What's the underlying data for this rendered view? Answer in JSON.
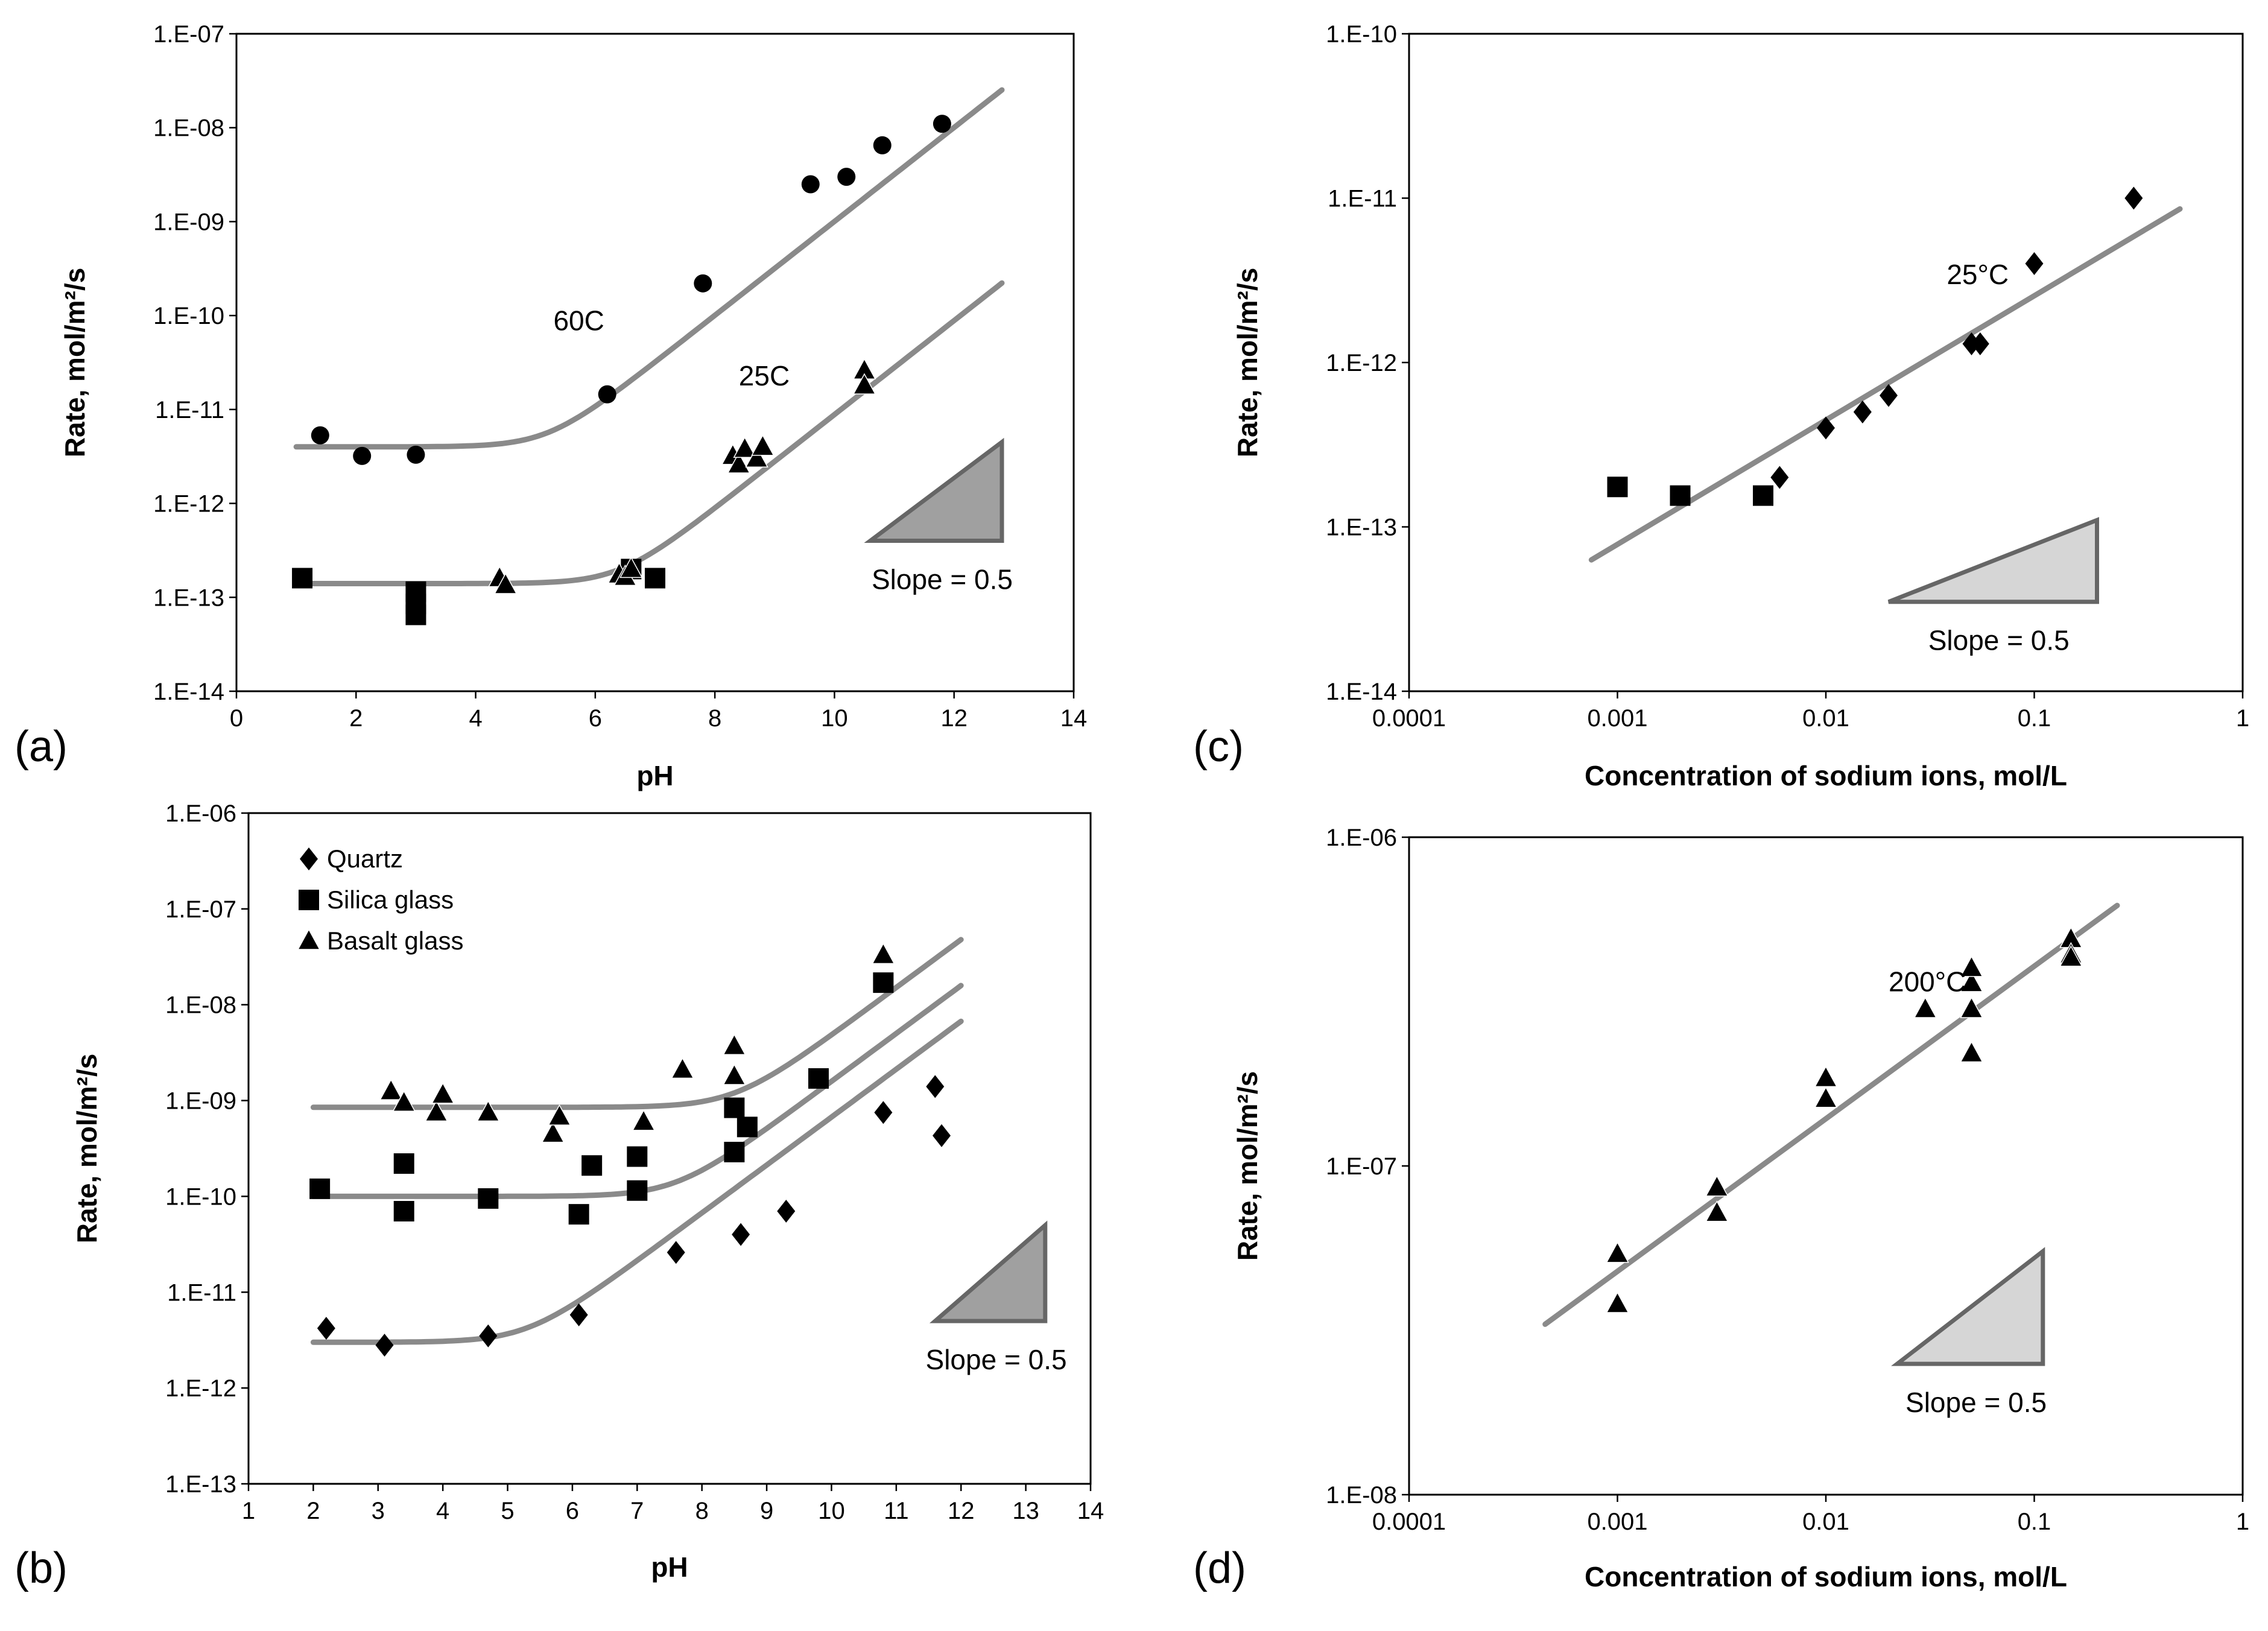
{
  "colors": {
    "fit_line": "#8a8a8a",
    "marker": "#000000",
    "triangle_dark_fill": "#a0a0a0",
    "triangle_light_fill": "#d6d6d6",
    "triangle_stroke": "#666666"
  },
  "chart_data": [
    {
      "id": "a",
      "panel_label": "(a)",
      "type": "scatter",
      "xscale": "linear",
      "yscale": "log",
      "xlim": [
        0,
        14
      ],
      "ylim": [
        1e-14,
        1e-07
      ],
      "x_ticks": [
        0,
        2,
        4,
        6,
        8,
        10,
        12,
        14
      ],
      "x_tick_labels": [
        "0",
        "2",
        "4",
        "6",
        "8",
        "10",
        "12",
        "14"
      ],
      "y_ticks": [
        1e-14,
        1e-13,
        1e-12,
        1e-11,
        1e-10,
        1e-09,
        1e-08,
        1e-07
      ],
      "y_tick_labels": [
        "1.E-14",
        "1.E-13",
        "1.E-12",
        "1.E-11",
        "1.E-10",
        "1.E-09",
        "1.E-08",
        "1.E-07"
      ],
      "xlabel": "pH",
      "ylabel": "Rate, mol/m²/s",
      "annotations": [
        {
          "text": "60C",
          "x": 5.3,
          "y": 7e-11
        },
        {
          "text": "25C",
          "x": 8.4,
          "y": 1.8e-11
        }
      ],
      "slope_label": "Slope = 0.5",
      "slope_triangle": {
        "fill": "dark",
        "x0": 10.6,
        "x1": 12.8,
        "y0": 4e-13,
        "y1": 4.5e-12
      },
      "series": [
        {
          "name": "60C",
          "marker": "circle",
          "x": [
            1.4,
            2.1,
            3.0,
            6.2,
            7.8,
            9.6,
            10.2,
            10.8,
            11.8
          ],
          "y": [
            5.3e-12,
            3.2e-12,
            3.3e-12,
            1.45e-11,
            2.2e-10,
            2.5e-09,
            3e-09,
            6.5e-09,
            1.1e-08
          ]
        },
        {
          "name": "25C squares",
          "marker": "square",
          "x": [
            1.1,
            3.0,
            3.0,
            3.0,
            6.6,
            7.0
          ],
          "y": [
            1.6e-13,
            1.15e-13,
            8.5e-14,
            6.5e-14,
            2e-13,
            1.6e-13
          ]
        },
        {
          "name": "25C triangles",
          "marker": "triangle",
          "x": [
            4.4,
            4.5,
            6.4,
            6.5,
            6.6,
            8.3,
            8.4,
            8.5,
            8.7,
            8.8,
            10.5,
            10.5
          ],
          "y": [
            1.6e-13,
            1.35e-13,
            1.75e-13,
            1.65e-13,
            2e-13,
            3.2e-12,
            2.6e-12,
            3.8e-12,
            3e-12,
            4e-12,
            2.6e-11,
            1.8e-11
          ]
        },
        {
          "name": "60C fit",
          "marker": "line",
          "r0": 4e-12,
          "k": 0.5,
          "x0": 5.2,
          "xrange": [
            1.0,
            12.8
          ]
        },
        {
          "name": "25C fit",
          "marker": "line",
          "r0": 1.4e-13,
          "k": 0.5,
          "x0": 6.4,
          "xrange": [
            1.0,
            12.8
          ]
        }
      ]
    },
    {
      "id": "b",
      "panel_label": "(b)",
      "type": "scatter",
      "xscale": "linear",
      "yscale": "log",
      "xlim": [
        1,
        14
      ],
      "ylim": [
        1e-13,
        1e-06
      ],
      "x_ticks": [
        1,
        2,
        3,
        4,
        5,
        6,
        7,
        8,
        9,
        10,
        11,
        12,
        13,
        14
      ],
      "x_tick_labels": [
        "1",
        "2",
        "3",
        "4",
        "5",
        "6",
        "7",
        "8",
        "9",
        "10",
        "11",
        "12",
        "13",
        "14"
      ],
      "y_ticks": [
        1e-13,
        1e-12,
        1e-11,
        1e-10,
        1e-09,
        1e-08,
        1e-07,
        1e-06
      ],
      "y_tick_labels": [
        "1.E-13",
        "1.E-12",
        "1.E-11",
        "1.E-10",
        "1.E-09",
        "1.E-08",
        "1.E-07",
        "1.E-06"
      ],
      "xlabel": "pH",
      "ylabel": "Rate, mol/m²/s",
      "legend": [
        {
          "marker": "diamond",
          "label": "Quartz"
        },
        {
          "marker": "square",
          "label": "Silica glass"
        },
        {
          "marker": "triangle",
          "label": "Basalt glass"
        }
      ],
      "legend_position": "top-left",
      "slope_label": "Slope = 0.5",
      "slope_triangle": {
        "fill": "dark",
        "x0": 11.6,
        "x1": 13.3,
        "y0": 5e-12,
        "y1": 5e-11
      },
      "series": [
        {
          "name": "Quartz",
          "marker": "diamond",
          "x": [
            2.2,
            3.1,
            4.7,
            6.1,
            7.6,
            8.6,
            9.3,
            10.8,
            11.6,
            11.7
          ],
          "y": [
            4.2e-12,
            2.8e-12,
            3.5e-12,
            5.8e-12,
            2.6e-11,
            4e-11,
            7e-11,
            7.5e-10,
            1.4e-09,
            4.3e-10
          ]
        },
        {
          "name": "Silica glass",
          "marker": "square",
          "x": [
            2.1,
            3.4,
            3.4,
            4.7,
            6.1,
            6.3,
            7.0,
            7.0,
            8.5,
            8.5,
            8.7,
            9.8,
            10.8
          ],
          "y": [
            1.2e-10,
            2.2e-10,
            7e-11,
            9.5e-11,
            6.5e-11,
            2.1e-10,
            1.15e-10,
            2.6e-10,
            8.4e-10,
            2.9e-10,
            5.3e-10,
            1.7e-09,
            1.7e-08
          ]
        },
        {
          "name": "Basalt glass",
          "marker": "triangle",
          "x": [
            3.2,
            3.4,
            3.9,
            4.0,
            4.7,
            5.7,
            5.8,
            7.1,
            7.7,
            8.5,
            8.5,
            10.8
          ],
          "y": [
            1.25e-09,
            9.5e-10,
            7.5e-10,
            1.15e-09,
            7.5e-10,
            4.5e-10,
            6.8e-10,
            6e-10,
            2.1e-09,
            3.7e-09,
            1.8e-09,
            3.3e-08
          ]
        },
        {
          "name": "Quartz fit",
          "marker": "line",
          "r0": 3e-12,
          "k": 0.5,
          "x0": 5.3,
          "xrange": [
            2.0,
            12.0
          ]
        },
        {
          "name": "Silica glass fit",
          "marker": "line",
          "r0": 1e-10,
          "k": 0.5,
          "x0": 7.6,
          "xrange": [
            2.0,
            12.0
          ]
        },
        {
          "name": "Basalt glass fit",
          "marker": "line",
          "r0": 8.5e-10,
          "k": 0.5,
          "x0": 8.5,
          "xrange": [
            2.0,
            12.0
          ]
        }
      ]
    },
    {
      "id": "c",
      "panel_label": "(c)",
      "type": "scatter",
      "xscale": "log",
      "yscale": "log",
      "xlim": [
        0.0001,
        1
      ],
      "ylim": [
        1e-14,
        1e-10
      ],
      "x_ticks": [
        0.0001,
        0.001,
        0.01,
        0.1,
        1
      ],
      "x_tick_labels": [
        "0.0001",
        "0.001",
        "0.01",
        "0.1",
        "1"
      ],
      "y_ticks": [
        1e-14,
        1e-13,
        1e-12,
        1e-11,
        1e-10
      ],
      "y_tick_labels": [
        "1.E-14",
        "1.E-13",
        "1.E-12",
        "1.E-11",
        "1.E-10"
      ],
      "xlabel": "Concentration of sodium ions, mol/L",
      "ylabel": "Rate, mol/m²/s",
      "annotations": [
        {
          "text": "25°C",
          "x": 0.038,
          "y": 3e-12
        }
      ],
      "slope_label": "Slope = 0.5",
      "slope_triangle": {
        "fill": "light",
        "x0": 0.02,
        "x1": 0.2,
        "y0": 3.5e-14,
        "y1": 1.1e-13
      },
      "series": [
        {
          "name": "Quartz",
          "marker": "diamond",
          "x": [
            0.006,
            0.01,
            0.015,
            0.02,
            0.05,
            0.055,
            0.1,
            0.3
          ],
          "y": [
            2e-13,
            4e-13,
            5e-13,
            6.3e-13,
            1.3e-12,
            1.3e-12,
            4e-12,
            1e-11
          ]
        },
        {
          "name": "Silica glass",
          "marker": "square",
          "x": [
            0.001,
            0.002,
            0.005
          ],
          "y": [
            1.75e-13,
            1.55e-13,
            1.55e-13
          ]
        },
        {
          "name": "Fit",
          "marker": "line",
          "x": [
            0.00075,
            0.5
          ],
          "y": [
            6.3e-14,
            8.6e-12
          ]
        }
      ]
    },
    {
      "id": "d",
      "panel_label": "(d)",
      "type": "scatter",
      "xscale": "log",
      "yscale": "log",
      "xlim": [
        0.0001,
        1
      ],
      "ylim": [
        1e-08,
        1e-06
      ],
      "x_ticks": [
        0.0001,
        0.001,
        0.01,
        0.1,
        1
      ],
      "x_tick_labels": [
        "0.0001",
        "0.001",
        "0.01",
        "0.1",
        "1"
      ],
      "y_ticks": [
        1e-08,
        1e-07,
        1e-06
      ],
      "y_tick_labels": [
        "1.E-08",
        "1.E-07",
        "1.E-06"
      ],
      "xlabel": "Concentration of sodium ions, mol/L",
      "ylabel": "Rate, mol/m²/s",
      "annotations": [
        {
          "text": "200°C",
          "x": 0.02,
          "y": 3.4e-07
        }
      ],
      "slope_label": "Slope = 0.5",
      "slope_triangle": {
        "fill": "light",
        "x0": 0.022,
        "x1": 0.11,
        "y0": 2.5e-08,
        "y1": 5.5e-08
      },
      "series": [
        {
          "name": "Basalt glass",
          "marker": "triangle",
          "x": [
            0.001,
            0.001,
            0.003,
            0.003,
            0.01,
            0.01,
            0.03,
            0.05,
            0.05,
            0.05,
            0.05,
            0.05,
            0.15,
            0.15,
            0.15
          ],
          "y": [
            5.4e-08,
            3.8e-08,
            8.6e-08,
            7.2e-08,
            1.85e-07,
            1.6e-07,
            3e-07,
            4e-07,
            3.6e-07,
            3e-07,
            2.2e-07,
            4e-07,
            4.9e-07,
            4.4e-07,
            4.3e-07
          ]
        },
        {
          "name": "Fit",
          "marker": "line",
          "x": [
            0.00045,
            0.25
          ],
          "y": [
            3.3e-08,
            6.2e-07
          ]
        }
      ]
    }
  ]
}
